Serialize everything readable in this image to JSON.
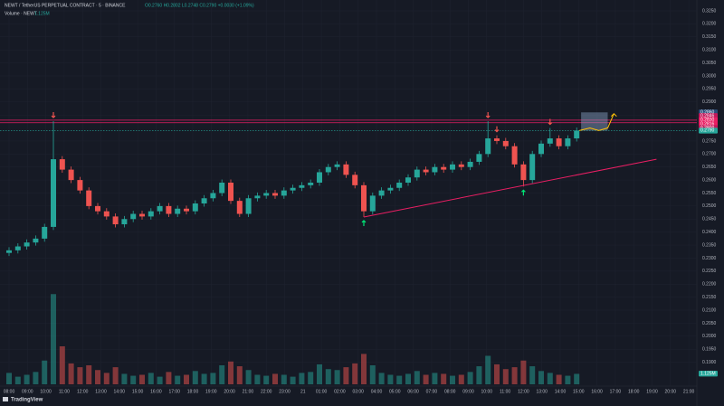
{
  "chart_data": {
    "type": "candlestick",
    "title": "NEWT / TetherUS PERPETUAL CONTRACT · 5 · BINANCE",
    "ohlc_text": "O0.2760 H0.2802 L0.2748 C0.2790 +0.0030 (+1.09%)",
    "subtitle": "Volume · NEWT",
    "volume_text": "1.125M",
    "watermark": "TradingView",
    "up_color": "#26a69a",
    "down_color": "#ef5350",
    "grid": true,
    "open": [
      0.232,
      0.233,
      0.2345,
      0.236,
      0.2375,
      0.242,
      0.268,
      0.264,
      0.26,
      0.256,
      0.25,
      0.248,
      0.246,
      0.243,
      0.245,
      0.247,
      0.246,
      0.248,
      0.25,
      0.247,
      0.249,
      0.248,
      0.251,
      0.253,
      0.255,
      0.259,
      0.252,
      0.247,
      0.253,
      0.254,
      0.255,
      0.254,
      0.256,
      0.257,
      0.258,
      0.259,
      0.263,
      0.265,
      0.266,
      0.262,
      0.258,
      0.248,
      0.254,
      0.256,
      0.257,
      0.259,
      0.261,
      0.264,
      0.263,
      0.265,
      0.264,
      0.266,
      0.265,
      0.267,
      0.27,
      0.276,
      0.275,
      0.273,
      0.266,
      0.26,
      0.27,
      0.274,
      0.276,
      0.273,
      0.276
    ],
    "high": [
      0.2342,
      0.2357,
      0.2372,
      0.2387,
      0.2432,
      0.2826,
      0.2692,
      0.2652,
      0.2612,
      0.2572,
      0.2512,
      0.2492,
      0.2472,
      0.2462,
      0.2482,
      0.2482,
      0.2492,
      0.2512,
      0.2512,
      0.2502,
      0.2502,
      0.2522,
      0.2542,
      0.2562,
      0.2602,
      0.2602,
      0.2532,
      0.2542,
      0.2552,
      0.2562,
      0.2562,
      0.2572,
      0.2582,
      0.2592,
      0.2602,
      0.2642,
      0.2662,
      0.2672,
      0.2672,
      0.2632,
      0.2592,
      0.2552,
      0.2572,
      0.2582,
      0.2602,
      0.2622,
      0.2652,
      0.2652,
      0.2662,
      0.2662,
      0.2672,
      0.2672,
      0.2682,
      0.2712,
      0.2826,
      0.2772,
      0.2762,
      0.2742,
      0.2672,
      0.2712,
      0.2752,
      0.28,
      0.2772,
      0.2772,
      0.2802
    ],
    "low": [
      0.2308,
      0.2318,
      0.2333,
      0.2348,
      0.2363,
      0.2408,
      0.2628,
      0.2588,
      0.2548,
      0.2488,
      0.2468,
      0.2448,
      0.2418,
      0.2418,
      0.2438,
      0.2448,
      0.2448,
      0.2468,
      0.2458,
      0.2458,
      0.2468,
      0.2468,
      0.2498,
      0.2518,
      0.2538,
      0.2508,
      0.2458,
      0.2458,
      0.2518,
      0.2528,
      0.2528,
      0.2528,
      0.2548,
      0.2558,
      0.2568,
      0.2578,
      0.2618,
      0.2638,
      0.2608,
      0.2568,
      0.2458,
      0.2468,
      0.2528,
      0.2548,
      0.2558,
      0.2578,
      0.2598,
      0.2618,
      0.2618,
      0.2628,
      0.2628,
      0.2638,
      0.2638,
      0.2658,
      0.2688,
      0.2738,
      0.2718,
      0.2648,
      0.2575,
      0.2588,
      0.2688,
      0.2728,
      0.2718,
      0.2718,
      0.2748
    ],
    "close": [
      0.233,
      0.2345,
      0.236,
      0.2375,
      0.242,
      0.268,
      0.264,
      0.26,
      0.256,
      0.25,
      0.248,
      0.246,
      0.243,
      0.245,
      0.247,
      0.246,
      0.248,
      0.25,
      0.247,
      0.249,
      0.248,
      0.251,
      0.253,
      0.255,
      0.259,
      0.252,
      0.247,
      0.253,
      0.254,
      0.255,
      0.254,
      0.256,
      0.257,
      0.258,
      0.259,
      0.263,
      0.265,
      0.266,
      0.262,
      0.258,
      0.248,
      0.254,
      0.256,
      0.257,
      0.259,
      0.261,
      0.264,
      0.263,
      0.265,
      0.264,
      0.266,
      0.265,
      0.267,
      0.27,
      0.276,
      0.275,
      0.273,
      0.266,
      0.26,
      0.27,
      0.274,
      0.276,
      0.273,
      0.276,
      0.279
    ],
    "volume": [
      1.2,
      0.8,
      1.0,
      1.3,
      2.5,
      9.5,
      4.0,
      2.2,
      1.8,
      2.0,
      1.5,
      1.2,
      1.8,
      1.1,
      0.9,
      1.0,
      1.2,
      0.8,
      1.3,
      0.9,
      1.0,
      1.4,
      1.1,
      1.2,
      2.0,
      2.4,
      1.9,
      1.5,
      1.0,
      0.9,
      1.1,
      1.0,
      0.8,
      1.2,
      1.3,
      2.1,
      1.6,
      1.5,
      1.8,
      2.2,
      3.2,
      2.0,
      1.2,
      1.0,
      0.9,
      1.1,
      1.4,
      1.0,
      1.2,
      1.1,
      0.9,
      1.0,
      1.3,
      1.9,
      3.0,
      2.1,
      1.6,
      1.8,
      2.5,
      1.9,
      1.4,
      1.2,
      1.0,
      0.9,
      1.1
    ],
    "volume_last": 1.125,
    "ylim": [
      0.185,
      0.325
    ],
    "y2lim": [
      0,
      10
    ],
    "yticks": [
      {
        "value": 0.325,
        "label": "0.3250"
      },
      {
        "value": 0.32,
        "label": "0.3200"
      },
      {
        "value": 0.315,
        "label": "0.3150"
      },
      {
        "value": 0.31,
        "label": "0.3100"
      },
      {
        "value": 0.305,
        "label": "0.3050"
      },
      {
        "value": 0.3,
        "label": "0.3000"
      },
      {
        "value": 0.295,
        "label": "0.2950"
      },
      {
        "value": 0.29,
        "label": "0.2900"
      },
      {
        "value": 0.285,
        "label": "0.2850"
      },
      {
        "value": 0.275,
        "label": "0.2750"
      },
      {
        "value": 0.27,
        "label": "0.2700"
      },
      {
        "value": 0.265,
        "label": "0.2650"
      },
      {
        "value": 0.26,
        "label": "0.2600"
      },
      {
        "value": 0.255,
        "label": "0.2550"
      },
      {
        "value": 0.25,
        "label": "0.2500"
      },
      {
        "value": 0.245,
        "label": "0.2450"
      },
      {
        "value": 0.24,
        "label": "0.2400"
      },
      {
        "value": 0.235,
        "label": "0.2350"
      },
      {
        "value": 0.23,
        "label": "0.2300"
      },
      {
        "value": 0.225,
        "label": "0.2250"
      },
      {
        "value": 0.22,
        "label": "0.2200"
      },
      {
        "value": 0.215,
        "label": "0.2150"
      },
      {
        "value": 0.21,
        "label": "0.2100"
      },
      {
        "value": 0.205,
        "label": "0.2050"
      },
      {
        "value": 0.2,
        "label": "0.2000"
      },
      {
        "value": 0.195,
        "label": "0.1950"
      },
      {
        "value": 0.19,
        "label": "0.1900"
      }
    ],
    "price_tags": [
      {
        "value": 0.286,
        "label": "0.2860",
        "color": "#2a4d7a"
      },
      {
        "value": 0.2846,
        "label": "0.2846",
        "color": "#c2185b"
      },
      {
        "value": 0.283,
        "label": "0.2830",
        "color": "#e91e63"
      },
      {
        "value": 0.2816,
        "label": "0.2816",
        "color": "#e91e63"
      },
      {
        "value": 0.28,
        "label": "0.2800",
        "color": "#c2185b"
      },
      {
        "value": 0.279,
        "label": "0.2790",
        "color": "#26a69a"
      }
    ],
    "hlines": [
      {
        "value": 0.283,
        "color": "#e91e63"
      },
      {
        "value": 0.282,
        "color": "#e91e63"
      },
      {
        "value": 0.279,
        "color": "#26a69a",
        "dashed": true
      }
    ],
    "target_box": {
      "x": [
        64.5,
        67.5
      ],
      "y": [
        0.279,
        0.286
      ],
      "color": "#8aa4c8"
    },
    "trend_line": {
      "x": [
        40,
        73
      ],
      "y": [
        0.2458,
        0.268
      ],
      "color": "#e91e63"
    },
    "projection": {
      "x": [
        64.3,
        65.5,
        66.5,
        67.5,
        68.2
      ],
      "y": [
        0.279,
        0.28,
        0.279,
        0.28,
        0.2855
      ],
      "color": "#ffc107"
    },
    "markers": [
      {
        "index": 5,
        "dir": "down",
        "color": "#ef5350"
      },
      {
        "index": 54,
        "dir": "down",
        "color": "#ef5350"
      },
      {
        "index": 55,
        "dir": "down",
        "color": "#ef5350"
      },
      {
        "index": 61,
        "dir": "down",
        "color": "#ef5350"
      },
      {
        "index": 40,
        "dir": "up",
        "color": "#00e676"
      },
      {
        "index": 58,
        "dir": "up",
        "color": "#00e676"
      }
    ],
    "time_labels": [
      "08:00",
      "09:00",
      "10:00",
      "11:00",
      "12:00",
      "13:00",
      "14:00",
      "15:00",
      "16:00",
      "17:00",
      "18:00",
      "19:00",
      "20:00",
      "21:00",
      "22:00",
      "23:00",
      "21",
      "01:00",
      "02:00",
      "03:00",
      "04:00",
      "05:00",
      "06:00",
      "07:00",
      "08:00",
      "09:00",
      "10:00",
      "11:00",
      "12:00",
      "13:00",
      "14:00",
      "15:00",
      "16:00",
      "17:00",
      "18:00",
      "19:00",
      "20:00",
      "21:00"
    ]
  }
}
